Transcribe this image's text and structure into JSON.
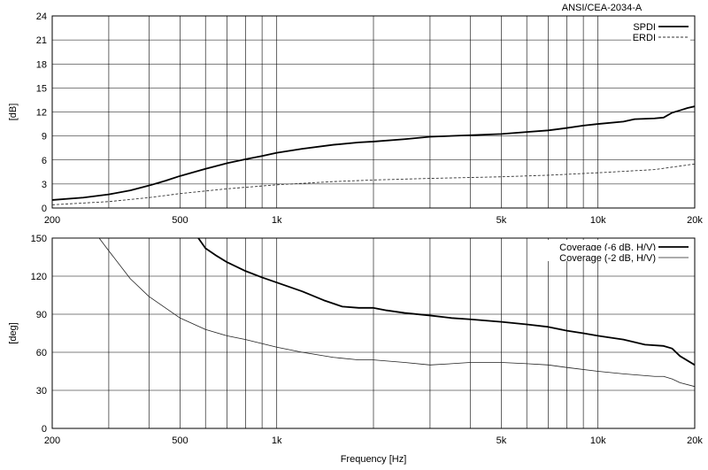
{
  "chart_data": [
    {
      "type": "line",
      "title": "ANSI/CEA-2034-A",
      "xlabel": "",
      "ylabel": "[dB]",
      "xscale": "log",
      "xlim": [
        200,
        20000
      ],
      "ylim": [
        0,
        24
      ],
      "yticks": [
        0,
        3,
        6,
        9,
        12,
        15,
        18,
        21,
        24
      ],
      "xtick_labels": [
        {
          "value": 200,
          "label": "200"
        },
        {
          "value": 500,
          "label": "500"
        },
        {
          "value": 1000,
          "label": "1k"
        },
        {
          "value": 5000,
          "label": "5k"
        },
        {
          "value": 10000,
          "label": "10k"
        },
        {
          "value": 20000,
          "label": "20k"
        }
      ],
      "legend_position": "top-right",
      "grid": true,
      "series": [
        {
          "name": "SPDI",
          "style": "solid-thick",
          "color": "#000000",
          "points": [
            [
              200,
              1.0
            ],
            [
              250,
              1.3
            ],
            [
              300,
              1.7
            ],
            [
              350,
              2.2
            ],
            [
              400,
              2.8
            ],
            [
              450,
              3.4
            ],
            [
              500,
              4.0
            ],
            [
              600,
              4.9
            ],
            [
              700,
              5.6
            ],
            [
              800,
              6.1
            ],
            [
              900,
              6.5
            ],
            [
              1000,
              6.9
            ],
            [
              1200,
              7.4
            ],
            [
              1500,
              7.9
            ],
            [
              1800,
              8.2
            ],
            [
              2000,
              8.3
            ],
            [
              2500,
              8.6
            ],
            [
              3000,
              8.9
            ],
            [
              4000,
              9.1
            ],
            [
              5000,
              9.25
            ],
            [
              6000,
              9.5
            ],
            [
              7000,
              9.7
            ],
            [
              8000,
              10.0
            ],
            [
              9000,
              10.3
            ],
            [
              10000,
              10.5
            ],
            [
              12000,
              10.8
            ],
            [
              13000,
              11.1
            ],
            [
              15000,
              11.2
            ],
            [
              16000,
              11.3
            ],
            [
              17000,
              11.9
            ],
            [
              18000,
              12.2
            ],
            [
              19000,
              12.5
            ],
            [
              20000,
              12.7
            ]
          ]
        },
        {
          "name": "ERDI",
          "style": "dashed",
          "color": "#333333",
          "points": [
            [
              200,
              0.4
            ],
            [
              300,
              0.8
            ],
            [
              400,
              1.3
            ],
            [
              500,
              1.8
            ],
            [
              700,
              2.4
            ],
            [
              1000,
              2.9
            ],
            [
              1500,
              3.3
            ],
            [
              2000,
              3.5
            ],
            [
              3000,
              3.7
            ],
            [
              5000,
              3.9
            ],
            [
              7000,
              4.1
            ],
            [
              10000,
              4.4
            ],
            [
              15000,
              4.8
            ],
            [
              20000,
              5.5
            ]
          ]
        }
      ]
    },
    {
      "type": "line",
      "title": "",
      "xlabel": "Frequency [Hz]",
      "ylabel": "[deg]",
      "xscale": "log",
      "xlim": [
        200,
        20000
      ],
      "ylim": [
        0,
        150
      ],
      "yticks": [
        0,
        30,
        60,
        90,
        120,
        150
      ],
      "xtick_labels": [
        {
          "value": 200,
          "label": "200"
        },
        {
          "value": 500,
          "label": "500"
        },
        {
          "value": 1000,
          "label": "1k"
        },
        {
          "value": 5000,
          "label": "5k"
        },
        {
          "value": 10000,
          "label": "10k"
        },
        {
          "value": 20000,
          "label": "20k"
        }
      ],
      "legend_position": "top-right",
      "grid": true,
      "series": [
        {
          "name": "Coverage (-6 dB, H/V)",
          "style": "solid-thick",
          "color": "#000000",
          "points": [
            [
              570,
              150
            ],
            [
              600,
              142
            ],
            [
              650,
              136
            ],
            [
              700,
              131
            ],
            [
              800,
              124
            ],
            [
              900,
              119
            ],
            [
              1000,
              115
            ],
            [
              1200,
              108
            ],
            [
              1400,
              101
            ],
            [
              1600,
              96
            ],
            [
              1800,
              95
            ],
            [
              2000,
              95
            ],
            [
              2200,
              93
            ],
            [
              2500,
              91
            ],
            [
              3000,
              89
            ],
            [
              3500,
              87
            ],
            [
              4000,
              86
            ],
            [
              5000,
              84
            ],
            [
              6000,
              82
            ],
            [
              7000,
              80
            ],
            [
              8000,
              77
            ],
            [
              9000,
              75
            ],
            [
              10000,
              73
            ],
            [
              12000,
              70
            ],
            [
              14000,
              66
            ],
            [
              16000,
              65
            ],
            [
              17000,
              63
            ],
            [
              18000,
              57
            ],
            [
              20000,
              50
            ]
          ]
        },
        {
          "name": "Coverage (-2 dB, H/V)",
          "style": "solid-thin",
          "color": "#222222",
          "points": [
            [
              200,
              150
            ],
            [
              280,
              150
            ],
            [
              300,
              140
            ],
            [
              350,
              118
            ],
            [
              400,
              104
            ],
            [
              500,
              87
            ],
            [
              600,
              78
            ],
            [
              700,
              73
            ],
            [
              800,
              70
            ],
            [
              1000,
              64
            ],
            [
              1200,
              60
            ],
            [
              1500,
              56
            ],
            [
              1800,
              54
            ],
            [
              2000,
              54
            ],
            [
              2500,
              52
            ],
            [
              3000,
              50
            ],
            [
              3500,
              51
            ],
            [
              4000,
              52
            ],
            [
              5000,
              52
            ],
            [
              6000,
              51
            ],
            [
              7000,
              50
            ],
            [
              8000,
              48
            ],
            [
              10000,
              45
            ],
            [
              12000,
              43
            ],
            [
              15000,
              41
            ],
            [
              16000,
              41
            ],
            [
              17000,
              39
            ],
            [
              18000,
              36
            ],
            [
              20000,
              33
            ]
          ]
        }
      ]
    }
  ]
}
